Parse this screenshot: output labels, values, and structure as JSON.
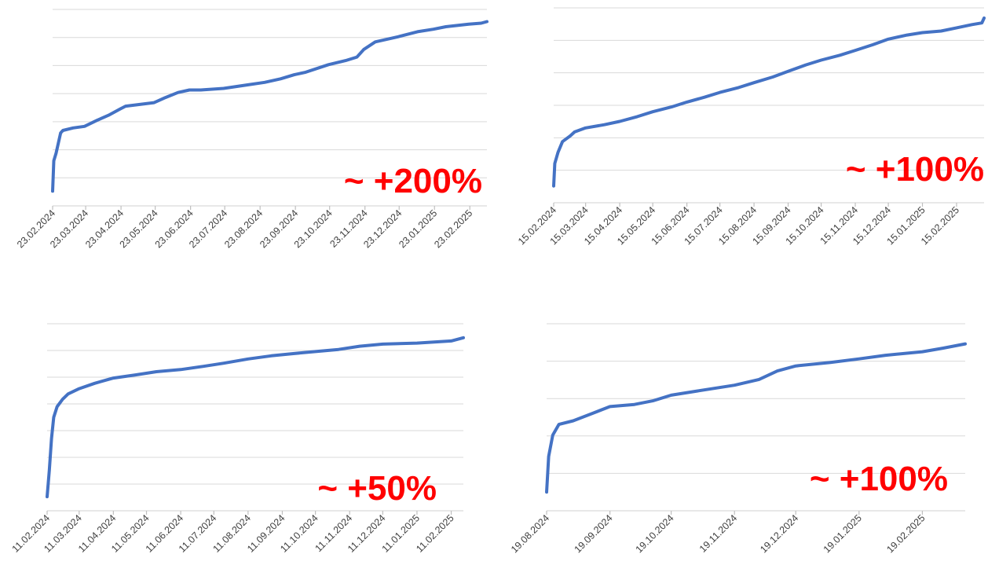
{
  "colors": {
    "line": "#4472c4",
    "annotation": "#ff0000",
    "grid": "#d9d9d9"
  },
  "chart_data": [
    {
      "type": "line",
      "xlabel": "",
      "ylabel": "",
      "grid": true,
      "legend": "none",
      "x_ticks": [
        "23.02.2024",
        "23.03.2024",
        "23.04.2024",
        "23.05.2024",
        "23.06.2024",
        "23.07.2024",
        "23.08.2024",
        "23.09.2024",
        "23.10.2024",
        "23.11.2024",
        "23.12.2024",
        "23.01.2025",
        "23.02.2025"
      ],
      "ylim": [
        0,
        3.3
      ],
      "annotation": "~ +200%",
      "series": [
        {
          "x": [
            "2024-02-23",
            "2024-02-24",
            "2024-02-26",
            "2024-02-28",
            "2024-03-01",
            "2024-03-03",
            "2024-03-12",
            "2024-03-22",
            "2024-04-02",
            "2024-04-12",
            "2024-04-22",
            "2024-04-27",
            "2024-05-22",
            "2024-06-01",
            "2024-06-12",
            "2024-06-22",
            "2024-07-02",
            "2024-07-22",
            "2024-08-12",
            "2024-08-27",
            "2024-09-10",
            "2024-09-22",
            "2024-10-02",
            "2024-10-22",
            "2024-11-06",
            "2024-11-16",
            "2024-11-22",
            "2024-12-02",
            "2024-12-22",
            "2025-01-08",
            "2025-01-22",
            "2025-02-02",
            "2025-02-22",
            "2025-03-05",
            "2025-03-10"
          ],
          "y": [
            0,
            0.6,
            0.75,
            0.95,
            1.15,
            1.2,
            1.25,
            1.28,
            1.4,
            1.5,
            1.62,
            1.68,
            1.75,
            1.85,
            1.95,
            2.0,
            2.0,
            2.03,
            2.1,
            2.15,
            2.22,
            2.3,
            2.35,
            2.5,
            2.58,
            2.65,
            2.8,
            2.95,
            3.05,
            3.15,
            3.2,
            3.25,
            3.3,
            3.32,
            3.35
          ]
        }
      ]
    },
    {
      "type": "line",
      "xlabel": "",
      "ylabel": "",
      "grid": true,
      "legend": "none",
      "x_ticks": [
        "15.02.2024",
        "15.03.2024",
        "15.04.2024",
        "15.05.2024",
        "15.06.2024",
        "15.07.2024",
        "15.08.2024",
        "15.09.2024",
        "15.10.2024",
        "15.11.2024",
        "15.12.2024",
        "15.01.2025",
        "15.02.2025"
      ],
      "ylim": [
        0,
        2.0
      ],
      "annotation": "~ +100%",
      "series": [
        {
          "x": [
            "2024-02-15",
            "2024-02-16",
            "2024-02-19",
            "2024-02-23",
            "2024-03-01",
            "2024-03-05",
            "2024-03-15",
            "2024-04-01",
            "2024-04-15",
            "2024-05-01",
            "2024-05-15",
            "2024-06-01",
            "2024-06-15",
            "2024-07-01",
            "2024-07-15",
            "2024-08-01",
            "2024-08-15",
            "2024-09-01",
            "2024-09-15",
            "2024-10-01",
            "2024-10-15",
            "2024-11-01",
            "2024-11-15",
            "2024-12-01",
            "2024-12-15",
            "2025-01-01",
            "2025-01-15",
            "2025-02-01",
            "2025-02-15",
            "2025-03-01",
            "2025-03-10",
            "2025-03-12"
          ],
          "y": [
            0,
            0.28,
            0.42,
            0.55,
            0.62,
            0.67,
            0.72,
            0.76,
            0.8,
            0.86,
            0.92,
            0.98,
            1.04,
            1.1,
            1.16,
            1.22,
            1.28,
            1.35,
            1.42,
            1.5,
            1.56,
            1.62,
            1.68,
            1.75,
            1.82,
            1.87,
            1.9,
            1.92,
            1.96,
            2.0,
            2.02,
            2.08
          ]
        }
      ]
    },
    {
      "type": "line",
      "xlabel": "",
      "ylabel": "",
      "grid": true,
      "legend": "none",
      "x_ticks": [
        "11.02.2024",
        "11.03.2024",
        "11.04.2024",
        "11.05.2024",
        "11.06.2024",
        "11.07.2024",
        "11.08.2024",
        "11.09.2024",
        "11.10.2024",
        "11.11.2024",
        "11.12.2024",
        "11.01.2025",
        "11.02.2025"
      ],
      "ylim": [
        0,
        1.5
      ],
      "annotation": "~ +50%",
      "series": [
        {
          "x": [
            "2024-02-11",
            "2024-02-13",
            "2024-02-15",
            "2024-02-17",
            "2024-02-20",
            "2024-02-25",
            "2024-03-01",
            "2024-03-11",
            "2024-03-25",
            "2024-04-11",
            "2024-05-01",
            "2024-05-20",
            "2024-06-11",
            "2024-07-01",
            "2024-07-20",
            "2024-08-11",
            "2024-09-01",
            "2024-09-20",
            "2024-10-11",
            "2024-11-01",
            "2024-11-20",
            "2024-12-11",
            "2025-01-11",
            "2025-02-11",
            "2025-02-22"
          ],
          "y": [
            0,
            0.25,
            0.55,
            0.75,
            0.85,
            0.92,
            0.97,
            1.02,
            1.07,
            1.12,
            1.15,
            1.18,
            1.2,
            1.23,
            1.26,
            1.3,
            1.33,
            1.35,
            1.37,
            1.39,
            1.42,
            1.44,
            1.45,
            1.47,
            1.5
          ]
        }
      ]
    },
    {
      "type": "line",
      "xlabel": "",
      "ylabel": "",
      "grid": true,
      "legend": "none",
      "x_ticks": [
        "19.08.2024",
        "19.09.2024",
        "19.10.2024",
        "19.11.2024",
        "19.12.2024",
        "19.01.2025",
        "19.02.2025"
      ],
      "ylim": [
        0,
        2.1
      ],
      "annotation": "~ +100%",
      "series": [
        {
          "x": [
            "2024-08-19",
            "2024-08-20",
            "2024-08-22",
            "2024-08-25",
            "2024-09-01",
            "2024-09-10",
            "2024-09-19",
            "2024-10-01",
            "2024-10-10",
            "2024-10-19",
            "2024-11-01",
            "2024-11-19",
            "2024-12-01",
            "2024-12-10",
            "2024-12-19",
            "2025-01-05",
            "2025-01-19",
            "2025-02-01",
            "2025-02-19",
            "2025-03-01",
            "2025-03-12"
          ],
          "y": [
            0,
            0.5,
            0.8,
            0.95,
            1.0,
            1.1,
            1.2,
            1.23,
            1.28,
            1.36,
            1.42,
            1.5,
            1.58,
            1.7,
            1.77,
            1.82,
            1.87,
            1.92,
            1.97,
            2.02,
            2.08
          ]
        }
      ]
    }
  ]
}
